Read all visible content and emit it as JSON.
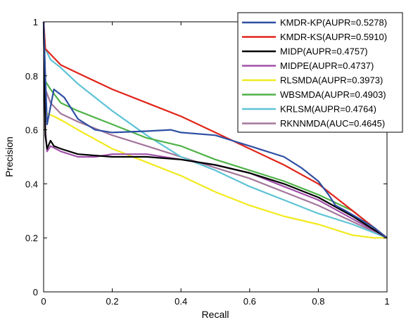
{
  "chart_data": {
    "type": "line",
    "xlabel": "Recall",
    "ylabel": "Precision",
    "xlim": [
      0,
      1
    ],
    "ylim": [
      0,
      1
    ],
    "xticks": [
      "0",
      "0.2",
      "0.4",
      "0.6",
      "0.8",
      "1"
    ],
    "yticks": [
      "0",
      "0.2",
      "0.4",
      "0.6",
      "0.8",
      "1"
    ],
    "grid": false,
    "legend_position": "top-right",
    "series": [
      {
        "name": "KMDR-KP(AUPR=0.5278)",
        "color": "#2e4fa3",
        "x": [
          0,
          0.005,
          0.01,
          0.03,
          0.06,
          0.1,
          0.15,
          0.2,
          0.3,
          0.37,
          0.4,
          0.5,
          0.55,
          0.6,
          0.65,
          0.7,
          0.75,
          0.8,
          0.83,
          0.85,
          0.88,
          0.92,
          0.96,
          1.0
        ],
        "y": [
          1.0,
          0.8,
          0.62,
          0.75,
          0.72,
          0.64,
          0.6,
          0.59,
          0.595,
          0.6,
          0.59,
          0.58,
          0.56,
          0.54,
          0.52,
          0.5,
          0.46,
          0.41,
          0.36,
          0.32,
          0.3,
          0.27,
          0.24,
          0.2
        ]
      },
      {
        "name": "KMDR-KS(AUPR=0.5910)",
        "color": "#e0251b",
        "x": [
          0,
          0.005,
          0.02,
          0.05,
          0.1,
          0.2,
          0.3,
          0.4,
          0.5,
          0.6,
          0.7,
          0.8,
          0.84,
          0.87,
          0.9,
          0.95,
          1.0
        ],
        "y": [
          1.0,
          0.9,
          0.88,
          0.84,
          0.81,
          0.75,
          0.7,
          0.65,
          0.59,
          0.53,
          0.47,
          0.4,
          0.36,
          0.33,
          0.3,
          0.25,
          0.2
        ]
      },
      {
        "name": "MIDP(AUPR=0.4757)",
        "color": "#000000",
        "x": [
          0,
          0.005,
          0.01,
          0.02,
          0.03,
          0.05,
          0.1,
          0.2,
          0.3,
          0.4,
          0.5,
          0.6,
          0.7,
          0.8,
          0.9,
          1.0
        ],
        "y": [
          1.0,
          0.58,
          0.53,
          0.56,
          0.54,
          0.53,
          0.51,
          0.5,
          0.5,
          0.49,
          0.47,
          0.44,
          0.4,
          0.35,
          0.28,
          0.2
        ]
      },
      {
        "name": "MIDPE(AUPR=0.4737)",
        "color": "#a04fa8",
        "x": [
          0,
          0.005,
          0.01,
          0.02,
          0.05,
          0.1,
          0.15,
          0.2,
          0.3,
          0.4,
          0.5,
          0.6,
          0.7,
          0.8,
          0.9,
          1.0
        ],
        "y": [
          1.0,
          0.6,
          0.52,
          0.54,
          0.52,
          0.5,
          0.5,
          0.51,
          0.51,
          0.49,
          0.47,
          0.44,
          0.39,
          0.34,
          0.27,
          0.2
        ]
      },
      {
        "name": "RLSMDA(AUPR=0.3973)",
        "color": "#f2ea1f",
        "x": [
          0,
          0.005,
          0.01,
          0.03,
          0.06,
          0.1,
          0.2,
          0.3,
          0.4,
          0.5,
          0.6,
          0.7,
          0.8,
          0.9,
          0.96,
          1.0
        ],
        "y": [
          1.0,
          0.68,
          0.66,
          0.65,
          0.63,
          0.6,
          0.53,
          0.48,
          0.43,
          0.37,
          0.32,
          0.28,
          0.25,
          0.21,
          0.2,
          0.2
        ]
      },
      {
        "name": "WBSMDA(AUPR=0.4903)",
        "color": "#4fb248",
        "x": [
          0,
          0.005,
          0.02,
          0.05,
          0.1,
          0.2,
          0.3,
          0.4,
          0.5,
          0.6,
          0.7,
          0.8,
          0.9,
          1.0
        ],
        "y": [
          1.0,
          0.78,
          0.75,
          0.7,
          0.67,
          0.62,
          0.57,
          0.54,
          0.49,
          0.45,
          0.41,
          0.36,
          0.3,
          0.2
        ]
      },
      {
        "name": "KRLSM(AUPR=0.4764)",
        "color": "#5ec3d6",
        "x": [
          0,
          0.005,
          0.02,
          0.05,
          0.1,
          0.2,
          0.3,
          0.4,
          0.5,
          0.6,
          0.7,
          0.8,
          0.9,
          1.0
        ],
        "y": [
          1.0,
          0.9,
          0.86,
          0.83,
          0.77,
          0.67,
          0.58,
          0.5,
          0.45,
          0.39,
          0.34,
          0.29,
          0.25,
          0.2
        ]
      },
      {
        "name": "RKNNMDA(AUC=0.4645)",
        "color": "#a4769b",
        "x": [
          0,
          0.005,
          0.02,
          0.05,
          0.1,
          0.2,
          0.3,
          0.4,
          0.5,
          0.6,
          0.7,
          0.8,
          0.9,
          1.0
        ],
        "y": [
          1.0,
          0.75,
          0.7,
          0.66,
          0.63,
          0.58,
          0.54,
          0.5,
          0.46,
          0.42,
          0.37,
          0.32,
          0.26,
          0.2
        ]
      }
    ]
  }
}
